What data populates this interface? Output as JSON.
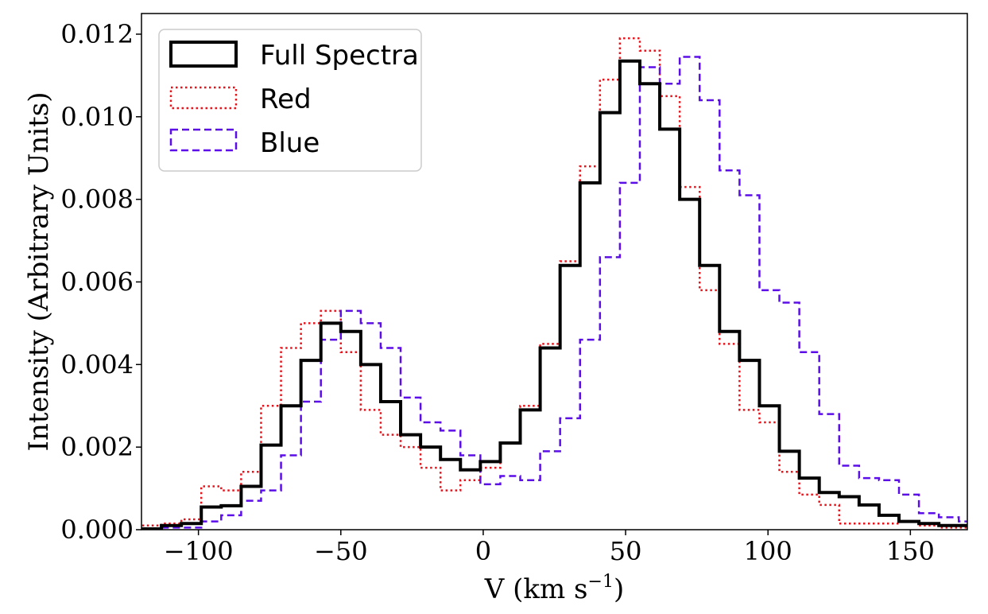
{
  "chart_data": {
    "type": "line",
    "subtype": "step-histogram",
    "xlabel": "V (km s",
    "xlabel_exponent": "−1",
    "xlabel_close": ")",
    "ylabel": "Intensity (Arbitrary Units)",
    "xlim": [
      -120,
      170
    ],
    "ylim": [
      0,
      0.0125
    ],
    "xticks": [
      -100,
      -50,
      0,
      50,
      100,
      150
    ],
    "xtick_labels": [
      "−100",
      "−50",
      "0",
      "50",
      "100",
      "150"
    ],
    "yticks": [
      0,
      0.002,
      0.004,
      0.006,
      0.008,
      0.01,
      0.012
    ],
    "ytick_labels": [
      "0.000",
      "0.002",
      "0.004",
      "0.006",
      "0.008",
      "0.010",
      "0.012"
    ],
    "grid": false,
    "legend_position": "top-left",
    "bin_edges": [
      -120,
      -113,
      -106,
      -99,
      -92,
      -85,
      -78,
      -71,
      -64,
      -57,
      -50,
      -43,
      -36,
      -29,
      -22,
      -15,
      -8,
      -1,
      6,
      13,
      20,
      27,
      34,
      41,
      48,
      55,
      62,
      69,
      76,
      83,
      90,
      97,
      104,
      111,
      118,
      125,
      132,
      139,
      146,
      153,
      160,
      167,
      174
    ],
    "series": [
      {
        "name": "Full Spectra",
        "color": "#000000",
        "style": "solid",
        "values": [
          2e-05,
          0.0001,
          0.00015,
          0.00055,
          0.00058,
          0.00105,
          0.00205,
          0.003,
          0.0041,
          0.005,
          0.0048,
          0.004,
          0.0031,
          0.0023,
          0.002,
          0.0017,
          0.00145,
          0.00165,
          0.0021,
          0.0029,
          0.0044,
          0.0064,
          0.0084,
          0.0101,
          0.01135,
          0.0108,
          0.0097,
          0.008,
          0.0064,
          0.0048,
          0.0041,
          0.003,
          0.0019,
          0.00125,
          0.0009,
          0.0008,
          0.0006,
          0.00035,
          0.0002,
          0.00015,
          0.0001,
          0.0001
        ]
      },
      {
        "name": "Red",
        "color": "#e8141c",
        "style": "dotted",
        "values": [
          0.0001,
          0.00015,
          0.00025,
          0.00105,
          0.00095,
          0.0014,
          0.003,
          0.0044,
          0.005,
          0.0053,
          0.0043,
          0.0029,
          0.0023,
          0.002,
          0.0015,
          0.00095,
          0.0012,
          0.0015,
          0.0021,
          0.003,
          0.0045,
          0.0065,
          0.0088,
          0.0109,
          0.0119,
          0.0116,
          0.0105,
          0.0083,
          0.0058,
          0.0045,
          0.0029,
          0.0026,
          0.0014,
          0.00085,
          0.0006,
          0.00015,
          0.00015,
          0.00015,
          0.0002,
          0.0001,
          5e-05,
          5e-05
        ]
      },
      {
        "name": "Blue",
        "color": "#5b0ee8",
        "style": "dashed",
        "values": [
          2e-05,
          5e-05,
          5e-05,
          0.0002,
          0.00035,
          0.0007,
          0.00095,
          0.0018,
          0.0031,
          0.0046,
          0.0053,
          0.005,
          0.0044,
          0.0032,
          0.0026,
          0.0024,
          0.0018,
          0.0011,
          0.0013,
          0.0012,
          0.0019,
          0.0027,
          0.0046,
          0.0066,
          0.0084,
          0.0112,
          0.0108,
          0.01145,
          0.0104,
          0.0087,
          0.0081,
          0.0058,
          0.0055,
          0.0043,
          0.0028,
          0.00155,
          0.00125,
          0.0012,
          0.00085,
          0.0004,
          0.0003,
          0.0002
        ]
      }
    ]
  }
}
